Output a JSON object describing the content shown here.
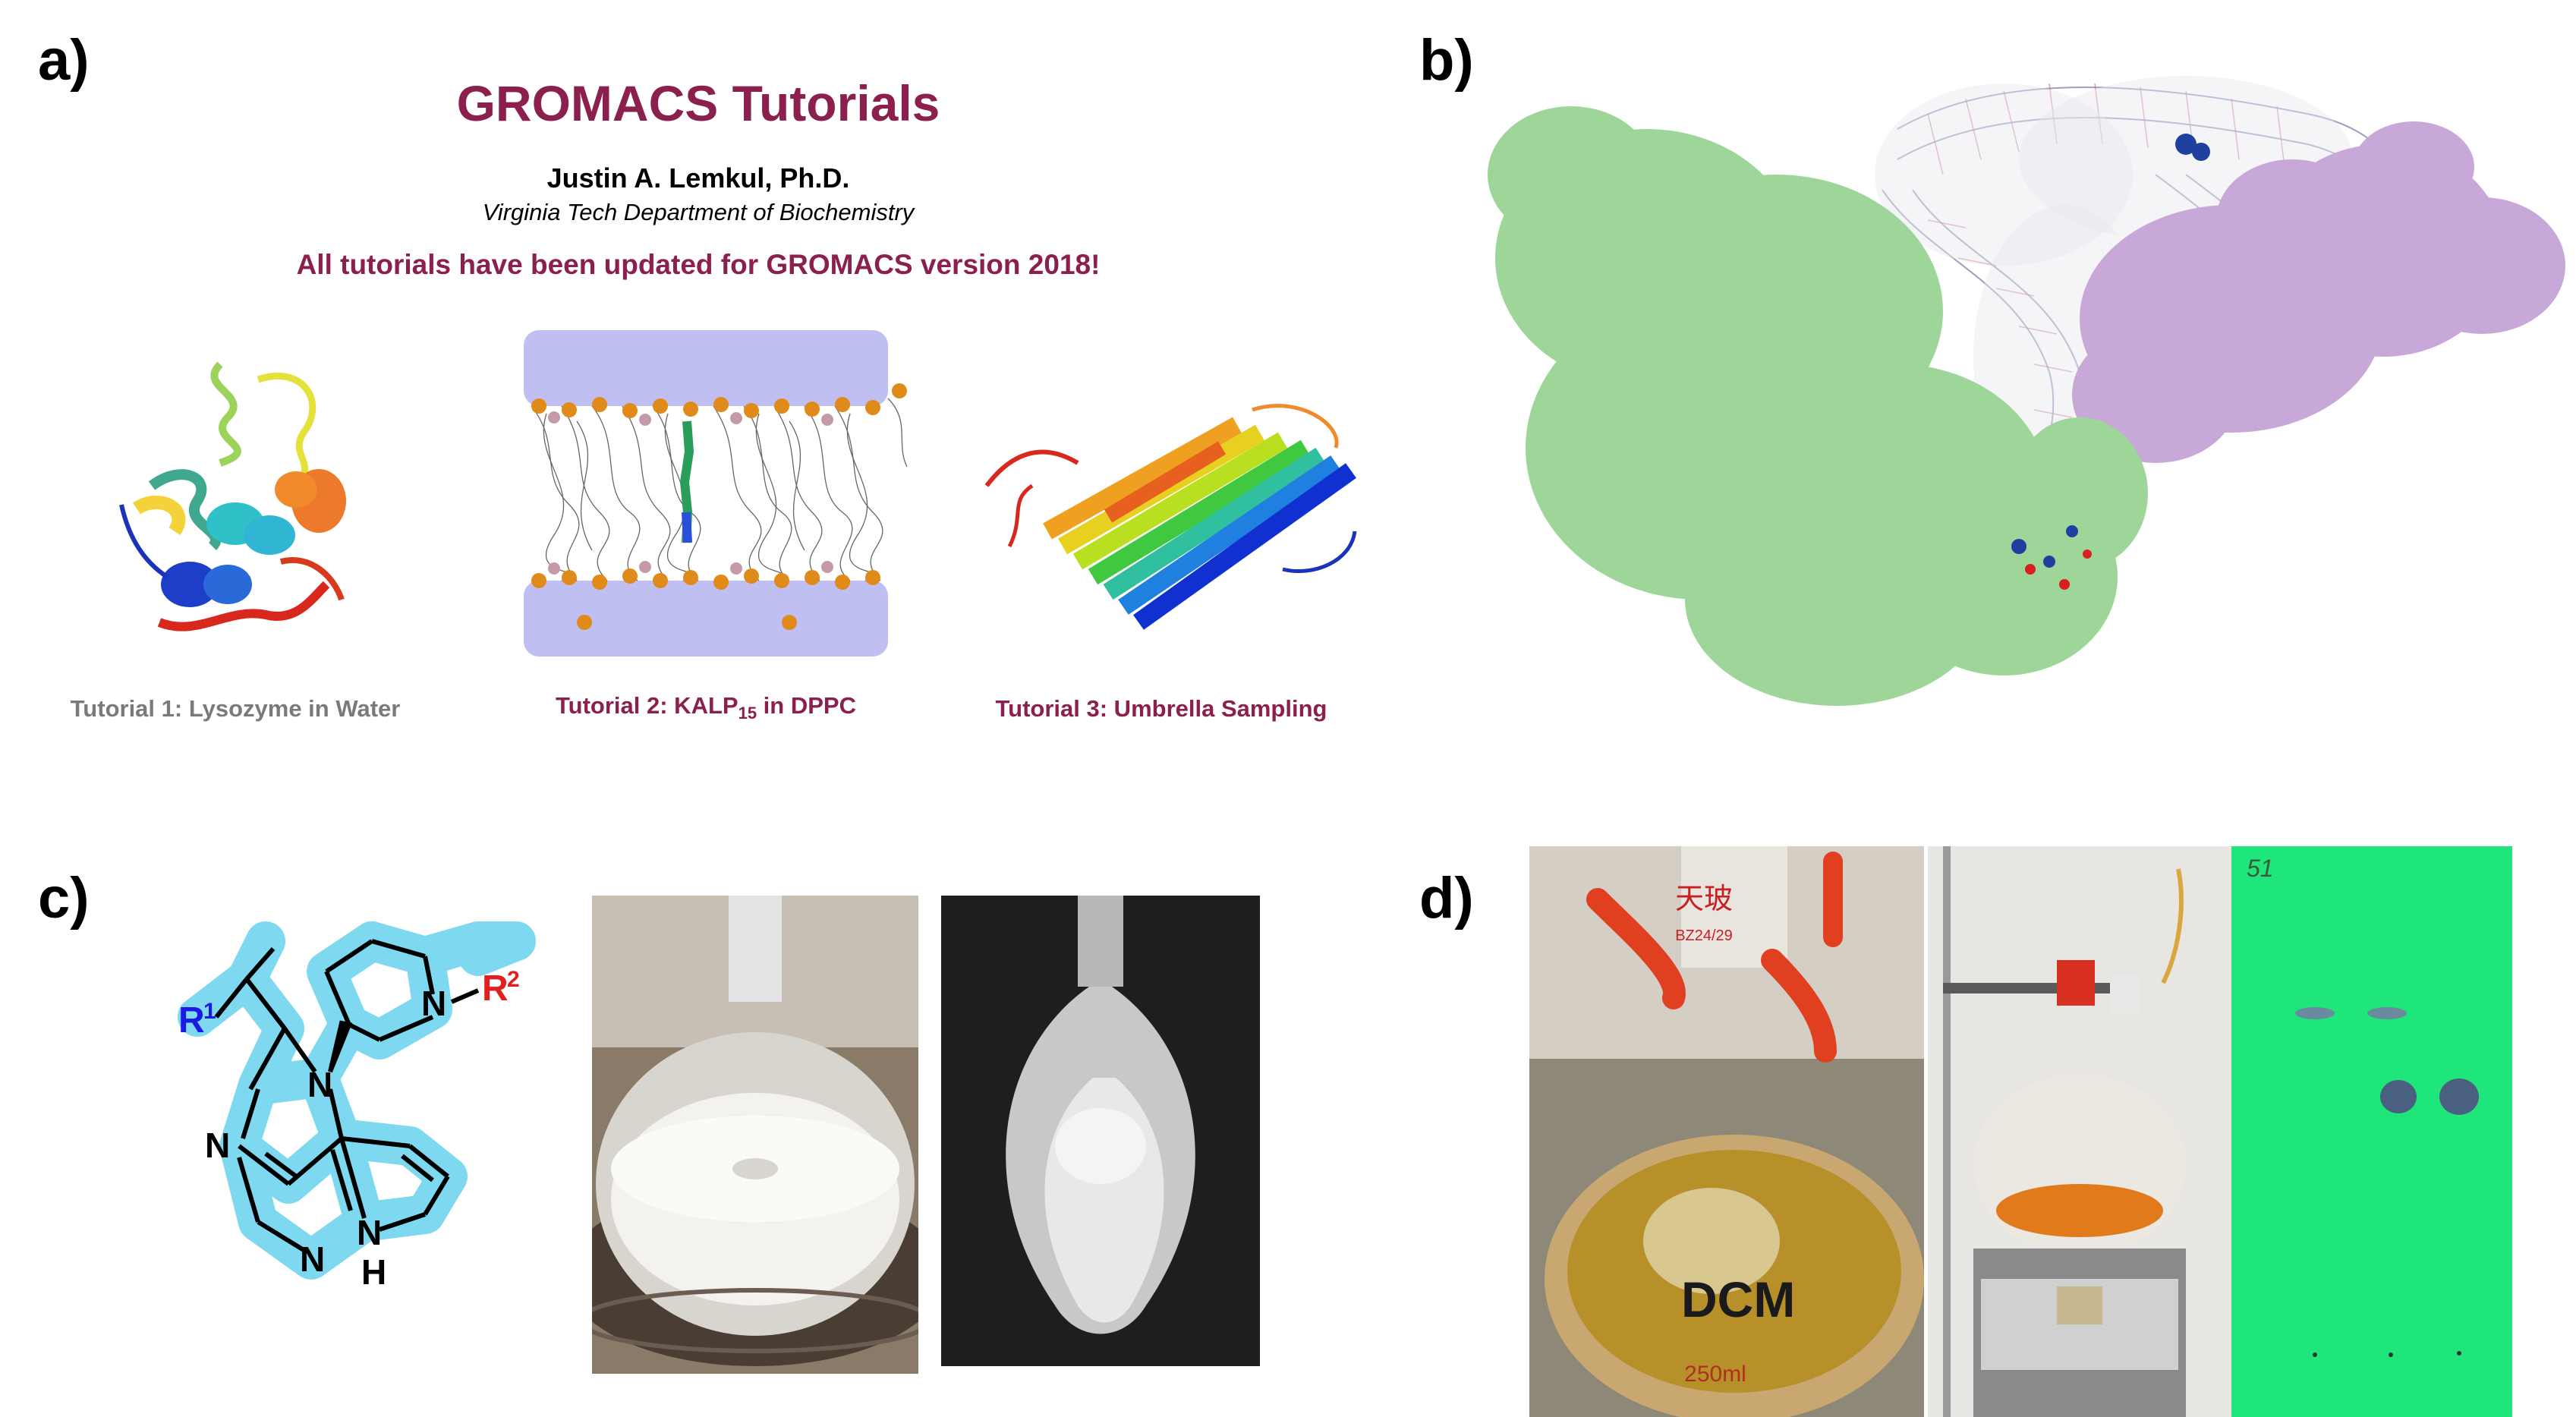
{
  "panels": {
    "a": "a)",
    "b": "b)",
    "c": "c)",
    "d": "d)"
  },
  "tutorials": {
    "title": "GROMACS Tutorials",
    "author": "Justin A. Lemkul, Ph.D.",
    "affiliation": "Virginia Tech Department of Biochemistry",
    "update_note": "All tutorials have been updated for GROMACS version 2018!",
    "items": [
      {
        "label": "Tutorial 1: Lysozyme in Water"
      },
      {
        "label_prefix": "Tutorial 2: KALP",
        "label_sub": "15",
        "label_suffix": " in DPPC"
      },
      {
        "label": "Tutorial 3: Umbrella Sampling"
      }
    ]
  },
  "molecule": {
    "r1": "R",
    "r1_sup": "1",
    "r2": "R",
    "r2_sup": "2",
    "n_atom": "N",
    "h_atom": "H"
  },
  "labels_in_photos": {
    "joint_label_chinese": "天玻",
    "joint_size": "BZ24/29",
    "flask_marker": "DCM",
    "flask_volume": "250ml",
    "tlc_mark": "51"
  },
  "colors": {
    "accent": "#8b1f4e",
    "protein_green": "#9ed69a",
    "protein_purple": "#c8a8d8",
    "highlight_blue": "#7dd8f0",
    "tlc_green": "#1ee67a"
  }
}
